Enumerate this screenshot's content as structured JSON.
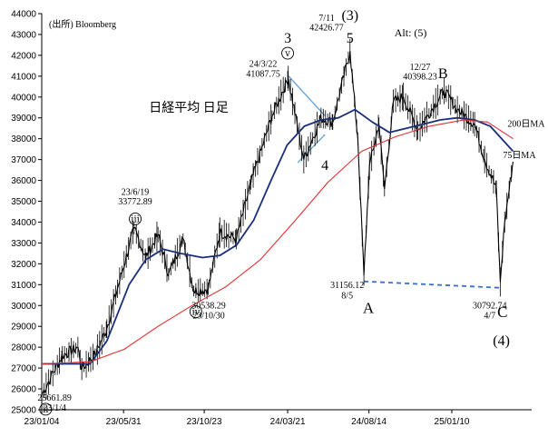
{
  "chart_data": {
    "type": "line",
    "title": "日経平均 日足",
    "source": "(出所) Bloomberg",
    "ylim": [
      25000,
      44000
    ],
    "y_ticks": [
      25000,
      26000,
      27000,
      28000,
      29000,
      30000,
      31000,
      32000,
      33000,
      34000,
      35000,
      36000,
      37000,
      38000,
      39000,
      40000,
      41000,
      42000,
      43000,
      44000
    ],
    "x_tick_labels": [
      "23/01/04",
      "23/05/31",
      "23/10/23",
      "24/03/21",
      "24/08/14",
      "25/01/10"
    ],
    "x_tick_dates": [
      "2023-01-04",
      "2023-05-31",
      "2023-10-23",
      "2024-03-21",
      "2024-08-14",
      "2025-01-10"
    ],
    "x_range": [
      "2023-01-04",
      "2025-04-30"
    ],
    "series": [
      {
        "name": "日経平均",
        "color": "#000000",
        "points": [
          [
            "2023-01-04",
            25717
          ],
          [
            "2023-01-20",
            26550
          ],
          [
            "2023-02-10",
            27600
          ],
          [
            "2023-03-10",
            28000
          ],
          [
            "2023-03-17",
            26950
          ],
          [
            "2023-04-10",
            27650
          ],
          [
            "2023-05-01",
            28900
          ],
          [
            "2023-05-20",
            30800
          ],
          [
            "2023-06-19",
            33700
          ],
          [
            "2023-07-10",
            32300
          ],
          [
            "2023-08-01",
            33400
          ],
          [
            "2023-08-20",
            31500
          ],
          [
            "2023-09-15",
            33200
          ],
          [
            "2023-10-04",
            30700
          ],
          [
            "2023-10-30",
            30800
          ],
          [
            "2023-11-20",
            33500
          ],
          [
            "2023-12-20",
            33200
          ],
          [
            "2024-01-15",
            35900
          ],
          [
            "2024-02-22",
            39100
          ],
          [
            "2024-03-22",
            40900
          ],
          [
            "2024-04-19",
            37000
          ],
          [
            "2024-05-20",
            39000
          ],
          [
            "2024-06-10",
            38800
          ],
          [
            "2024-07-11",
            42200
          ],
          [
            "2024-07-25",
            38000
          ],
          [
            "2024-08-05",
            31458
          ],
          [
            "2024-08-15",
            36700
          ],
          [
            "2024-09-01",
            38700
          ],
          [
            "2024-09-11",
            35600
          ],
          [
            "2024-09-27",
            39800
          ],
          [
            "2024-10-15",
            40000
          ],
          [
            "2024-11-10",
            38400
          ],
          [
            "2024-12-27",
            40300
          ],
          [
            "2025-01-20",
            39400
          ],
          [
            "2025-02-20",
            38700
          ],
          [
            "2025-03-10",
            37000
          ],
          [
            "2025-03-31",
            35600
          ],
          [
            "2025-04-07",
            31136
          ],
          [
            "2025-04-15",
            34000
          ],
          [
            "2025-04-30",
            36900
          ]
        ]
      },
      {
        "name": "75日MA",
        "color": "#1a2f7a",
        "points": [
          [
            "2023-01-04",
            27200
          ],
          [
            "2023-04-01",
            27200
          ],
          [
            "2023-05-01",
            28300
          ],
          [
            "2023-06-10",
            31000
          ],
          [
            "2023-07-10",
            32200
          ],
          [
            "2023-08-10",
            32700
          ],
          [
            "2023-09-10",
            32500
          ],
          [
            "2023-10-20",
            32300
          ],
          [
            "2023-11-20",
            32400
          ],
          [
            "2023-12-20",
            32900
          ],
          [
            "2024-01-20",
            34100
          ],
          [
            "2024-02-20",
            36000
          ],
          [
            "2024-03-20",
            37700
          ],
          [
            "2024-04-20",
            38600
          ],
          [
            "2024-05-20",
            38900
          ],
          [
            "2024-06-20",
            39000
          ],
          [
            "2024-07-20",
            39400
          ],
          [
            "2024-08-20",
            38800
          ],
          [
            "2024-09-20",
            38300
          ],
          [
            "2024-10-20",
            38500
          ],
          [
            "2024-11-20",
            38700
          ],
          [
            "2024-12-20",
            38900
          ],
          [
            "2025-01-20",
            39000
          ],
          [
            "2025-02-20",
            38900
          ],
          [
            "2025-03-20",
            38600
          ],
          [
            "2025-04-30",
            37400
          ]
        ]
      },
      {
        "name": "200日MA",
        "color": "#e03030",
        "points": [
          [
            "2023-01-04",
            27200
          ],
          [
            "2023-04-01",
            27300
          ],
          [
            "2023-06-01",
            27900
          ],
          [
            "2023-08-01",
            29000
          ],
          [
            "2023-10-01",
            30000
          ],
          [
            "2023-12-01",
            30900
          ],
          [
            "2024-02-01",
            32200
          ],
          [
            "2024-04-01",
            34000
          ],
          [
            "2024-06-01",
            35900
          ],
          [
            "2024-08-01",
            37400
          ],
          [
            "2024-10-01",
            38100
          ],
          [
            "2024-12-01",
            38600
          ],
          [
            "2025-02-01",
            38900
          ],
          [
            "2025-03-15",
            38800
          ],
          [
            "2025-04-30",
            38000
          ]
        ]
      }
    ],
    "annotations": [
      {
        "text": "25661.89",
        "x": "2023-01-27",
        "y": 25430,
        "size": 10,
        "anchor": "middle"
      },
      {
        "text": "23/1/4",
        "x": "2023-01-27",
        "y": 24950,
        "size": 10,
        "anchor": "middle"
      },
      {
        "text": "ⅱ",
        "x": "2023-01-11",
        "y": 24870,
        "size": 10,
        "anchor": "middle",
        "circle": true
      },
      {
        "text": "23/6/19",
        "x": "2023-06-21",
        "y": 35300,
        "size": 10,
        "anchor": "middle"
      },
      {
        "text": "33772.89",
        "x": "2023-06-21",
        "y": 34850,
        "size": 10,
        "anchor": "middle"
      },
      {
        "text": "ⅲ",
        "x": "2023-06-21",
        "y": 34000,
        "size": 10,
        "anchor": "middle",
        "circle": true
      },
      {
        "text": "ⅳ",
        "x": "2023-10-08",
        "y": 29550,
        "size": 10,
        "anchor": "middle",
        "circle": true
      },
      {
        "text": "30538.29",
        "x": "2023-10-31",
        "y": 29850,
        "size": 10,
        "anchor": "middle"
      },
      {
        "text": "23/10/30",
        "x": "2023-10-31",
        "y": 29370,
        "size": 10,
        "anchor": "middle"
      },
      {
        "text": "24/3/22",
        "x": "2024-02-06",
        "y": 41450,
        "size": 10,
        "anchor": "middle"
      },
      {
        "text": "41087.75",
        "x": "2024-02-06",
        "y": 40980,
        "size": 10,
        "anchor": "middle"
      },
      {
        "text": "3",
        "x": "2024-03-21",
        "y": 42600,
        "size": 16,
        "anchor": "middle"
      },
      {
        "text": "ⅴ",
        "x": "2024-03-21",
        "y": 41950,
        "size": 10,
        "anchor": "middle",
        "circle": true
      },
      {
        "text": "7/11",
        "x": "2024-05-30",
        "y": 43650,
        "size": 10,
        "anchor": "middle"
      },
      {
        "text": "42426.77",
        "x": "2024-05-30",
        "y": 43200,
        "size": 10,
        "anchor": "middle"
      },
      {
        "text": "(3)",
        "x": "2024-07-11",
        "y": 43700,
        "size": 16,
        "anchor": "middle"
      },
      {
        "text": "5",
        "x": "2024-07-11",
        "y": 42600,
        "size": 16,
        "anchor": "middle"
      },
      {
        "text": "4",
        "x": "2024-05-27",
        "y": 36500,
        "size": 16,
        "anchor": "middle"
      },
      {
        "text": "Alt: (5)",
        "x": "2024-10-28",
        "y": 42900,
        "size": 12,
        "anchor": "middle"
      },
      {
        "text": "12/27",
        "x": "2024-11-14",
        "y": 41300,
        "size": 10,
        "anchor": "middle"
      },
      {
        "text": "40398.23",
        "x": "2024-11-14",
        "y": 40830,
        "size": 10,
        "anchor": "middle"
      },
      {
        "text": "B",
        "x": "2024-12-25",
        "y": 40900,
        "size": 16,
        "anchor": "middle"
      },
      {
        "text": "200日MA",
        "x": "2025-04-20",
        "y": 38580,
        "size": 10,
        "anchor": "start",
        "color": "#e03030"
      },
      {
        "text": "75日MA",
        "x": "2025-04-12",
        "y": 37080,
        "size": 10,
        "anchor": "start",
        "color": "#1a2f7a"
      },
      {
        "text": "31156.12",
        "x": "2024-07-06",
        "y": 30850,
        "size": 10,
        "anchor": "middle"
      },
      {
        "text": "8/5",
        "x": "2024-07-06",
        "y": 30330,
        "size": 10,
        "anchor": "middle"
      },
      {
        "text": "A",
        "x": "2024-08-13",
        "y": 29650,
        "size": 17,
        "anchor": "middle"
      },
      {
        "text": "30792.74",
        "x": "2025-03-19",
        "y": 29850,
        "size": 10,
        "anchor": "middle"
      },
      {
        "text": "4/7",
        "x": "2025-03-19",
        "y": 29370,
        "size": 10,
        "anchor": "middle"
      },
      {
        "text": "C",
        "x": "2025-04-11",
        "y": 29450,
        "size": 17,
        "anchor": "middle"
      },
      {
        "text": "(4)",
        "x": "2025-04-09",
        "y": 28100,
        "size": 16,
        "anchor": "middle"
      }
    ],
    "lines": [
      {
        "x1": "2024-03-21",
        "y1": 41050,
        "x2": "2024-05-27",
        "y2": 39100,
        "color": "#5b9bd5",
        "dash": false
      },
      {
        "x1": "2024-04-08",
        "y1": 36850,
        "x2": "2024-05-27",
        "y2": 38200,
        "color": "#5b9bd5",
        "dash": false
      },
      {
        "x1": "2024-08-05",
        "y1": 31156,
        "x2": "2025-04-07",
        "y2": 30850,
        "color": "#3a6fc9",
        "dash": true
      }
    ]
  }
}
